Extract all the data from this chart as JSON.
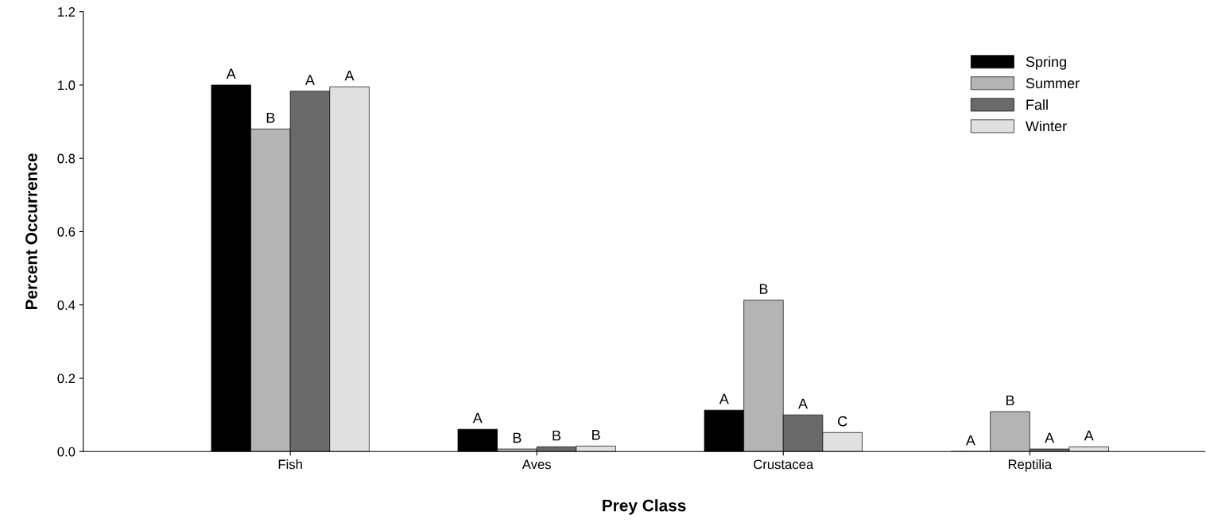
{
  "chart_data": {
    "type": "bar",
    "xlabel": "Prey Class",
    "ylabel": "Percent Occurrence",
    "categories": [
      "Fish",
      "Aves",
      "Crustacea",
      "Reptilia"
    ],
    "series": [
      {
        "name": "Spring",
        "color": "#000000",
        "values": [
          1.0,
          0.061,
          0.113,
          0.0
        ],
        "value_labels": [
          "A",
          "A",
          "A",
          "A"
        ]
      },
      {
        "name": "Summer",
        "color": "#b4b4b4",
        "values": [
          0.88,
          0.007,
          0.413,
          0.109
        ],
        "value_labels": [
          "B",
          "B",
          "B",
          "B"
        ]
      },
      {
        "name": "Fall",
        "color": "#6a6a6a",
        "values": [
          0.983,
          0.013,
          0.1,
          0.007
        ],
        "value_labels": [
          "A",
          "B",
          "A",
          "A"
        ]
      },
      {
        "name": "Winter",
        "color": "#e0e0e0",
        "values": [
          0.995,
          0.015,
          0.052,
          0.013
        ],
        "value_labels": [
          "A",
          "B",
          "C",
          "A"
        ]
      }
    ],
    "ylim": [
      0,
      1.2
    ],
    "yticks": [
      {
        "value": 0,
        "label": "0.0"
      },
      {
        "value": 0.2,
        "label": "0.2"
      },
      {
        "value": 0.4,
        "label": "0.4"
      },
      {
        "value": 0.6,
        "label": "0.6"
      },
      {
        "value": 0.8,
        "label": "0.8"
      },
      {
        "value": 1.0,
        "label": "1.0"
      },
      {
        "value": 1.2,
        "label": "1.2"
      }
    ],
    "grid": false,
    "legend": "top right"
  }
}
